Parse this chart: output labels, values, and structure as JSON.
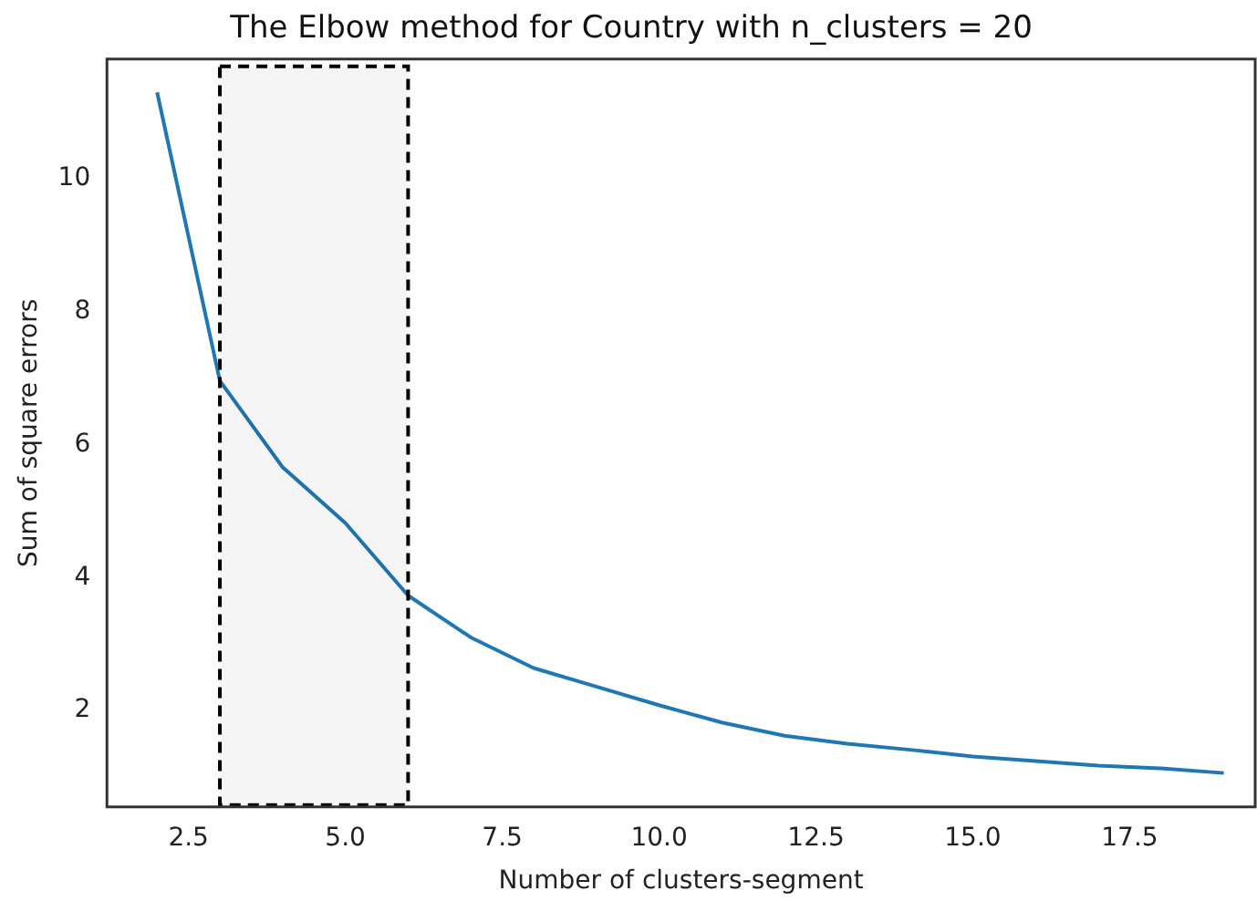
{
  "chart_data": {
    "type": "line",
    "title": "The Elbow method for Country with n_clusters = 20",
    "xlabel": "Number of clusters-segment",
    "ylabel": "Sum of square errors",
    "x": [
      2,
      3,
      4,
      5,
      6,
      7,
      8,
      9,
      10,
      11,
      12,
      13,
      14,
      15,
      16,
      17,
      18,
      19
    ],
    "series": [
      {
        "color": "#1f77b4",
        "values": [
          11.3,
          6.96,
          5.66,
          4.82,
          3.73,
          3.1,
          2.64,
          2.36,
          2.08,
          1.82,
          1.62,
          1.5,
          1.41,
          1.31,
          1.24,
          1.17,
          1.13,
          1.06
        ]
      }
    ],
    "xlim": [
      1.2,
      19.5
    ],
    "xticks": [
      {
        "value": 2.5,
        "label": "2.5"
      },
      {
        "value": 5,
        "label": "5.0"
      },
      {
        "value": 7.5,
        "label": "7.5"
      },
      {
        "value": 10,
        "label": "10.0"
      },
      {
        "value": 12.5,
        "label": "12.5"
      },
      {
        "value": 15,
        "label": "15.0"
      },
      {
        "value": 17.5,
        "label": "17.5"
      }
    ],
    "ylim": [
      0.55,
      11.8
    ],
    "yticks": [
      2,
      4,
      6,
      8,
      10
    ],
    "bands": [
      {
        "axis": "x",
        "from": 3,
        "to": 6,
        "color": "#000000"
      }
    ],
    "grid": false,
    "legend": false,
    "marker": "none",
    "line_style": "solid"
  }
}
